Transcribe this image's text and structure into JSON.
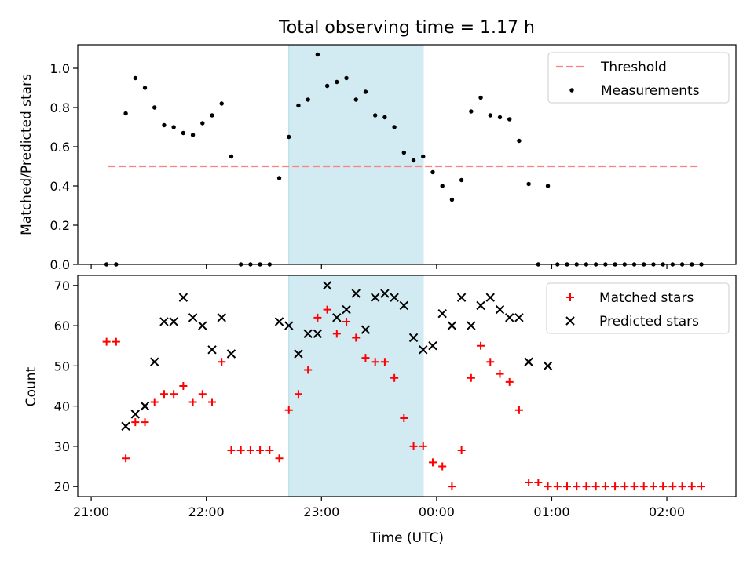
{
  "title": "Total observing time = 1.17 h",
  "colors": {
    "threshold": "#ff8080",
    "measurement": "#000000",
    "matched": "#ff0000",
    "predicted": "#000000",
    "highlight": "#add8e6"
  },
  "chart_data": [
    {
      "type": "scatter",
      "title": "Total observing time = 1.17 h",
      "ylabel": "Matched/Predicted stars",
      "ylim": [
        0,
        1.12
      ],
      "yticks": [
        "0.0",
        "0.2",
        "0.4",
        "0.6",
        "0.8",
        "1.0"
      ],
      "xlim": [
        "20:53",
        "02:36"
      ],
      "highlight_span": [
        "22:43",
        "23:53"
      ],
      "legend": {
        "placement": "top-right",
        "entries": [
          "Threshold",
          "Measurements"
        ]
      },
      "threshold": {
        "name": "Threshold",
        "x": [
          "21:09",
          "02:17"
        ],
        "y": 0.5
      },
      "series": [
        {
          "name": "Measurements",
          "x": [
            "21:08",
            "21:13",
            "21:18",
            "21:23",
            "21:28",
            "21:33",
            "21:38",
            "21:43",
            "21:48",
            "21:53",
            "21:58",
            "22:03",
            "22:08",
            "22:13",
            "22:18",
            "22:23",
            "22:28",
            "22:33",
            "22:38",
            "22:43",
            "22:48",
            "22:53",
            "22:58",
            "23:03",
            "23:08",
            "23:13",
            "23:18",
            "23:23",
            "23:28",
            "23:33",
            "23:38",
            "23:43",
            "23:48",
            "23:53",
            "23:58",
            "00:03",
            "00:08",
            "00:13",
            "00:18",
            "00:23",
            "00:28",
            "00:33",
            "00:38",
            "00:43",
            "00:48",
            "00:53",
            "00:58",
            "01:03",
            "01:08",
            "01:13",
            "01:18",
            "01:23",
            "01:28",
            "01:33",
            "01:38",
            "01:43",
            "01:48",
            "01:53",
            "01:58",
            "02:03",
            "02:08",
            "02:13",
            "02:18"
          ],
          "y": [
            0.0,
            0.0,
            0.77,
            0.95,
            0.9,
            0.8,
            0.71,
            0.7,
            0.67,
            0.66,
            0.72,
            0.76,
            0.82,
            0.55,
            0.0,
            0.0,
            0.0,
            0.0,
            0.44,
            0.65,
            0.81,
            0.84,
            1.07,
            0.91,
            0.93,
            0.95,
            0.84,
            0.88,
            0.76,
            0.75,
            0.7,
            0.57,
            0.53,
            0.55,
            0.47,
            0.4,
            0.33,
            0.43,
            0.78,
            0.85,
            0.76,
            0.75,
            0.74,
            0.63,
            0.41,
            0.0,
            0.4,
            0.0,
            0.0,
            0.0,
            0.0,
            0.0,
            0.0,
            0.0,
            0.0,
            0.0,
            0.0,
            0.0,
            0.0,
            0.0,
            0.0,
            0.0,
            0.0
          ]
        }
      ]
    },
    {
      "type": "scatter",
      "xlabel": "Time (UTC)",
      "ylabel": "Count",
      "ylim": [
        17.5,
        72.5
      ],
      "yticks": [
        "20",
        "30",
        "40",
        "50",
        "60",
        "70"
      ],
      "xlim": [
        "20:53",
        "02:36"
      ],
      "xticks": [
        "21:00",
        "22:00",
        "23:00",
        "00:00",
        "01:00",
        "02:00"
      ],
      "highlight_span": [
        "22:43",
        "23:53"
      ],
      "legend": {
        "placement": "top-right",
        "entries": [
          "Matched stars",
          "Predicted stars"
        ]
      },
      "series": [
        {
          "name": "Matched stars",
          "x": [
            "21:08",
            "21:13",
            "21:18",
            "21:23",
            "21:28",
            "21:33",
            "21:38",
            "21:43",
            "21:48",
            "21:53",
            "21:58",
            "22:03",
            "22:08",
            "22:13",
            "22:18",
            "22:23",
            "22:28",
            "22:33",
            "22:38",
            "22:43",
            "22:48",
            "22:53",
            "22:58",
            "23:03",
            "23:08",
            "23:13",
            "23:18",
            "23:23",
            "23:28",
            "23:33",
            "23:38",
            "23:43",
            "23:48",
            "23:53",
            "23:58",
            "00:03",
            "00:08",
            "00:13",
            "00:18",
            "00:23",
            "00:28",
            "00:33",
            "00:38",
            "00:43",
            "00:48",
            "00:53",
            "00:58",
            "01:03",
            "01:08",
            "01:13",
            "01:18",
            "01:23",
            "01:28",
            "01:33",
            "01:38",
            "01:43",
            "01:48",
            "01:53",
            "01:58",
            "02:03",
            "02:08",
            "02:13",
            "02:18"
          ],
          "y": [
            56,
            56,
            27,
            36,
            36,
            41,
            43,
            43,
            45,
            41,
            43,
            41,
            51,
            29,
            29,
            29,
            29,
            29,
            27,
            39,
            43,
            49,
            62,
            64,
            58,
            61,
            57,
            52,
            51,
            51,
            47,
            37,
            30,
            30,
            26,
            25,
            20,
            29,
            47,
            55,
            51,
            48,
            46,
            39,
            21,
            21,
            20,
            20,
            20,
            20,
            20,
            20,
            20,
            20,
            20,
            20,
            20,
            20,
            20,
            20,
            20,
            20,
            20
          ]
        },
        {
          "name": "Predicted stars",
          "x": [
            "21:18",
            "21:23",
            "21:28",
            "21:33",
            "21:38",
            "21:43",
            "21:48",
            "21:53",
            "21:58",
            "22:03",
            "22:08",
            "22:13",
            "22:38",
            "22:43",
            "22:48",
            "22:53",
            "22:58",
            "23:03",
            "23:08",
            "23:13",
            "23:18",
            "23:23",
            "23:28",
            "23:33",
            "23:38",
            "23:43",
            "23:48",
            "23:53",
            "23:58",
            "00:03",
            "00:08",
            "00:13",
            "00:18",
            "00:23",
            "00:28",
            "00:33",
            "00:38",
            "00:43",
            "00:48",
            "00:58"
          ],
          "y": [
            35,
            38,
            40,
            51,
            61,
            61,
            67,
            62,
            60,
            54,
            62,
            53,
            61,
            60,
            53,
            58,
            58,
            70,
            62,
            64,
            68,
            59,
            67,
            68,
            67,
            65,
            57,
            54,
            55,
            63,
            60,
            67,
            60,
            65,
            67,
            64,
            62,
            62,
            51,
            50
          ]
        }
      ]
    }
  ]
}
